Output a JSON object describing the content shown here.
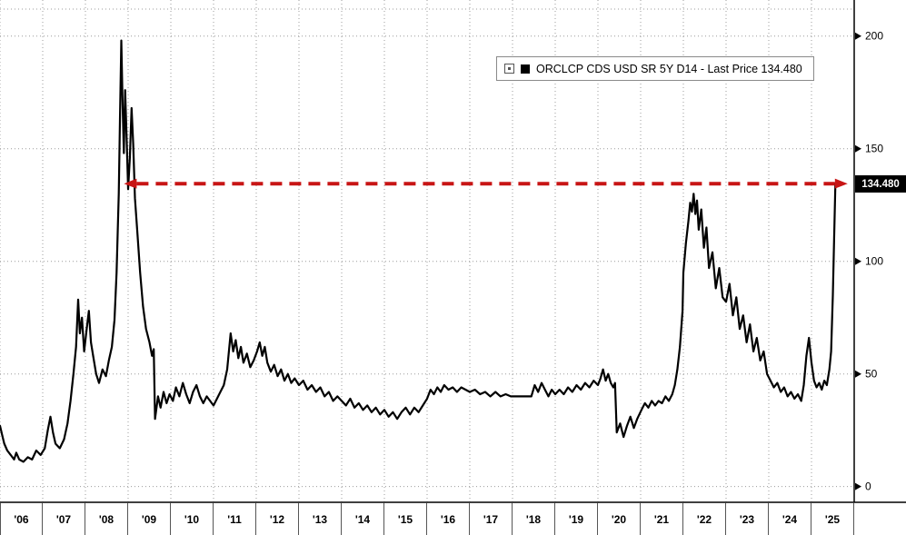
{
  "chart": {
    "legend": {
      "label": "ORCLCP CDS USD SR 5Y D14 - Last Price 134.480"
    },
    "last_price_badge": "134.480",
    "colors": {
      "series": "#000000",
      "arrow": "#c81515",
      "grid": "#9b9b9b",
      "badge_bg": "#000000",
      "badge_text": "#ffffff"
    }
  },
  "chart_data": {
    "type": "line",
    "series_name": "ORCLCP CDS USD SR 5Y D14 - Last Price",
    "last_price": 134.48,
    "legend_position": "top-center-right",
    "grid": "dotted",
    "xlim": [
      2006,
      2026
    ],
    "ylim": [
      -7,
      216
    ],
    "y_ticks": [
      0,
      50,
      100,
      150,
      200
    ],
    "x_tick_labels": [
      "'06",
      "'07",
      "'08",
      "'09",
      "'10",
      "'11",
      "'12",
      "'13",
      "'14",
      "'15",
      "'16",
      "'17",
      "'18",
      "'19",
      "'20",
      "'21",
      "'22",
      "'23",
      "'24",
      "'25"
    ],
    "annotation": {
      "type": "double-headed-arrow",
      "style": "dashed",
      "color": "#c81515",
      "y": 134.48,
      "x_start": 2009.2,
      "x_end": 2025.55
    },
    "points": [
      [
        2006.0,
        27
      ],
      [
        2006.05,
        23
      ],
      [
        2006.1,
        19
      ],
      [
        2006.17,
        16
      ],
      [
        2006.25,
        14
      ],
      [
        2006.33,
        12
      ],
      [
        2006.38,
        15
      ],
      [
        2006.45,
        12
      ],
      [
        2006.55,
        11
      ],
      [
        2006.65,
        13
      ],
      [
        2006.75,
        12
      ],
      [
        2006.85,
        16
      ],
      [
        2006.95,
        14
      ],
      [
        2007.05,
        17
      ],
      [
        2007.12,
        25
      ],
      [
        2007.18,
        31
      ],
      [
        2007.24,
        24
      ],
      [
        2007.3,
        19
      ],
      [
        2007.4,
        17
      ],
      [
        2007.5,
        21
      ],
      [
        2007.58,
        28
      ],
      [
        2007.65,
        38
      ],
      [
        2007.72,
        50
      ],
      [
        2007.78,
        62
      ],
      [
        2007.83,
        83
      ],
      [
        2007.87,
        68
      ],
      [
        2007.92,
        75
      ],
      [
        2007.97,
        60
      ],
      [
        2008.03,
        70
      ],
      [
        2008.08,
        78
      ],
      [
        2008.13,
        64
      ],
      [
        2008.18,
        58
      ],
      [
        2008.25,
        50
      ],
      [
        2008.32,
        46
      ],
      [
        2008.4,
        52
      ],
      [
        2008.48,
        49
      ],
      [
        2008.55,
        56
      ],
      [
        2008.62,
        62
      ],
      [
        2008.68,
        74
      ],
      [
        2008.73,
        95
      ],
      [
        2008.78,
        130
      ],
      [
        2008.81,
        165
      ],
      [
        2008.84,
        198
      ],
      [
        2008.87,
        170
      ],
      [
        2008.9,
        148
      ],
      [
        2008.93,
        176
      ],
      [
        2008.96,
        158
      ],
      [
        2009.0,
        132
      ],
      [
        2009.04,
        146
      ],
      [
        2009.08,
        168
      ],
      [
        2009.12,
        152
      ],
      [
        2009.16,
        128
      ],
      [
        2009.22,
        112
      ],
      [
        2009.28,
        95
      ],
      [
        2009.35,
        80
      ],
      [
        2009.42,
        70
      ],
      [
        2009.5,
        64
      ],
      [
        2009.56,
        58
      ],
      [
        2009.6,
        61
      ],
      [
        2009.63,
        30
      ],
      [
        2009.7,
        40
      ],
      [
        2009.76,
        35
      ],
      [
        2009.83,
        42
      ],
      [
        2009.9,
        37
      ],
      [
        2009.97,
        41
      ],
      [
        2010.05,
        38
      ],
      [
        2010.12,
        44
      ],
      [
        2010.2,
        40
      ],
      [
        2010.28,
        46
      ],
      [
        2010.36,
        41
      ],
      [
        2010.44,
        37
      ],
      [
        2010.52,
        42
      ],
      [
        2010.6,
        45
      ],
      [
        2010.68,
        40
      ],
      [
        2010.76,
        37
      ],
      [
        2010.84,
        40
      ],
      [
        2010.92,
        38
      ],
      [
        2011.0,
        36
      ],
      [
        2011.08,
        39
      ],
      [
        2011.16,
        42
      ],
      [
        2011.24,
        45
      ],
      [
        2011.32,
        52
      ],
      [
        2011.4,
        68
      ],
      [
        2011.46,
        60
      ],
      [
        2011.52,
        65
      ],
      [
        2011.58,
        57
      ],
      [
        2011.64,
        62
      ],
      [
        2011.7,
        55
      ],
      [
        2011.78,
        59
      ],
      [
        2011.86,
        53
      ],
      [
        2011.94,
        56
      ],
      [
        2012.02,
        60
      ],
      [
        2012.08,
        64
      ],
      [
        2012.14,
        58
      ],
      [
        2012.2,
        62
      ],
      [
        2012.26,
        55
      ],
      [
        2012.34,
        51
      ],
      [
        2012.42,
        54
      ],
      [
        2012.5,
        49
      ],
      [
        2012.58,
        52
      ],
      [
        2012.66,
        47
      ],
      [
        2012.74,
        50
      ],
      [
        2012.82,
        46
      ],
      [
        2012.9,
        48
      ],
      [
        2013.0,
        45
      ],
      [
        2013.1,
        47
      ],
      [
        2013.2,
        43
      ],
      [
        2013.3,
        45
      ],
      [
        2013.4,
        42
      ],
      [
        2013.5,
        44
      ],
      [
        2013.6,
        40
      ],
      [
        2013.7,
        42
      ],
      [
        2013.8,
        38
      ],
      [
        2013.9,
        40
      ],
      [
        2014.0,
        38
      ],
      [
        2014.1,
        36
      ],
      [
        2014.2,
        39
      ],
      [
        2014.3,
        35
      ],
      [
        2014.4,
        37
      ],
      [
        2014.5,
        34
      ],
      [
        2014.6,
        36
      ],
      [
        2014.7,
        33
      ],
      [
        2014.8,
        35
      ],
      [
        2014.9,
        32
      ],
      [
        2015.0,
        34
      ],
      [
        2015.1,
        31
      ],
      [
        2015.2,
        33
      ],
      [
        2015.3,
        30
      ],
      [
        2015.4,
        33
      ],
      [
        2015.5,
        35
      ],
      [
        2015.6,
        32
      ],
      [
        2015.7,
        35
      ],
      [
        2015.8,
        33
      ],
      [
        2015.9,
        36
      ],
      [
        2016.0,
        39
      ],
      [
        2016.08,
        43
      ],
      [
        2016.16,
        41
      ],
      [
        2016.24,
        44
      ],
      [
        2016.32,
        42
      ],
      [
        2016.4,
        45
      ],
      [
        2016.5,
        43
      ],
      [
        2016.6,
        44
      ],
      [
        2016.7,
        42
      ],
      [
        2016.8,
        44
      ],
      [
        2016.9,
        43
      ],
      [
        2017.0,
        42
      ],
      [
        2017.12,
        43
      ],
      [
        2017.24,
        41
      ],
      [
        2017.36,
        42
      ],
      [
        2017.48,
        40
      ],
      [
        2017.6,
        42
      ],
      [
        2017.72,
        40
      ],
      [
        2017.84,
        41
      ],
      [
        2017.96,
        40
      ],
      [
        2018.08,
        40
      ],
      [
        2018.2,
        40
      ],
      [
        2018.32,
        40
      ],
      [
        2018.44,
        40
      ],
      [
        2018.52,
        45
      ],
      [
        2018.6,
        42
      ],
      [
        2018.68,
        46
      ],
      [
        2018.76,
        43
      ],
      [
        2018.84,
        40
      ],
      [
        2018.92,
        43
      ],
      [
        2019.0,
        41
      ],
      [
        2019.1,
        43
      ],
      [
        2019.2,
        41
      ],
      [
        2019.3,
        44
      ],
      [
        2019.4,
        42
      ],
      [
        2019.5,
        45
      ],
      [
        2019.6,
        43
      ],
      [
        2019.7,
        46
      ],
      [
        2019.8,
        44
      ],
      [
        2019.9,
        47
      ],
      [
        2020.0,
        45
      ],
      [
        2020.06,
        48
      ],
      [
        2020.12,
        52
      ],
      [
        2020.18,
        47
      ],
      [
        2020.24,
        50
      ],
      [
        2020.3,
        46
      ],
      [
        2020.36,
        44
      ],
      [
        2020.4,
        46
      ],
      [
        2020.44,
        24
      ],
      [
        2020.52,
        28
      ],
      [
        2020.6,
        22
      ],
      [
        2020.68,
        27
      ],
      [
        2020.76,
        31
      ],
      [
        2020.84,
        26
      ],
      [
        2020.92,
        30
      ],
      [
        2021.02,
        34
      ],
      [
        2021.1,
        37
      ],
      [
        2021.18,
        35
      ],
      [
        2021.26,
        38
      ],
      [
        2021.34,
        36
      ],
      [
        2021.42,
        38
      ],
      [
        2021.5,
        37
      ],
      [
        2021.58,
        40
      ],
      [
        2021.66,
        38
      ],
      [
        2021.74,
        41
      ],
      [
        2021.8,
        45
      ],
      [
        2021.86,
        52
      ],
      [
        2021.92,
        62
      ],
      [
        2021.98,
        78
      ],
      [
        2022.0,
        95
      ],
      [
        2022.06,
        108
      ],
      [
        2022.12,
        118
      ],
      [
        2022.16,
        126
      ],
      [
        2022.2,
        122
      ],
      [
        2022.24,
        130
      ],
      [
        2022.28,
        121
      ],
      [
        2022.32,
        127
      ],
      [
        2022.36,
        114
      ],
      [
        2022.42,
        123
      ],
      [
        2022.48,
        106
      ],
      [
        2022.54,
        115
      ],
      [
        2022.6,
        97
      ],
      [
        2022.68,
        104
      ],
      [
        2022.76,
        88
      ],
      [
        2022.84,
        97
      ],
      [
        2022.92,
        84
      ],
      [
        2023.0,
        82
      ],
      [
        2023.08,
        90
      ],
      [
        2023.16,
        76
      ],
      [
        2023.24,
        84
      ],
      [
        2023.32,
        70
      ],
      [
        2023.4,
        76
      ],
      [
        2023.48,
        64
      ],
      [
        2023.56,
        72
      ],
      [
        2023.64,
        60
      ],
      [
        2023.72,
        66
      ],
      [
        2023.8,
        56
      ],
      [
        2023.88,
        60
      ],
      [
        2023.96,
        50
      ],
      [
        2024.04,
        47
      ],
      [
        2024.12,
        44
      ],
      [
        2024.2,
        46
      ],
      [
        2024.28,
        42
      ],
      [
        2024.36,
        44
      ],
      [
        2024.44,
        40
      ],
      [
        2024.52,
        42
      ],
      [
        2024.6,
        39
      ],
      [
        2024.68,
        41
      ],
      [
        2024.76,
        38
      ],
      [
        2024.82,
        45
      ],
      [
        2024.88,
        58
      ],
      [
        2024.94,
        66
      ],
      [
        2025.0,
        55
      ],
      [
        2025.06,
        47
      ],
      [
        2025.12,
        44
      ],
      [
        2025.18,
        46
      ],
      [
        2025.24,
        43
      ],
      [
        2025.3,
        47
      ],
      [
        2025.36,
        45
      ],
      [
        2025.42,
        52
      ],
      [
        2025.46,
        60
      ],
      [
        2025.5,
        85
      ],
      [
        2025.53,
        110
      ],
      [
        2025.56,
        134.48
      ]
    ]
  }
}
